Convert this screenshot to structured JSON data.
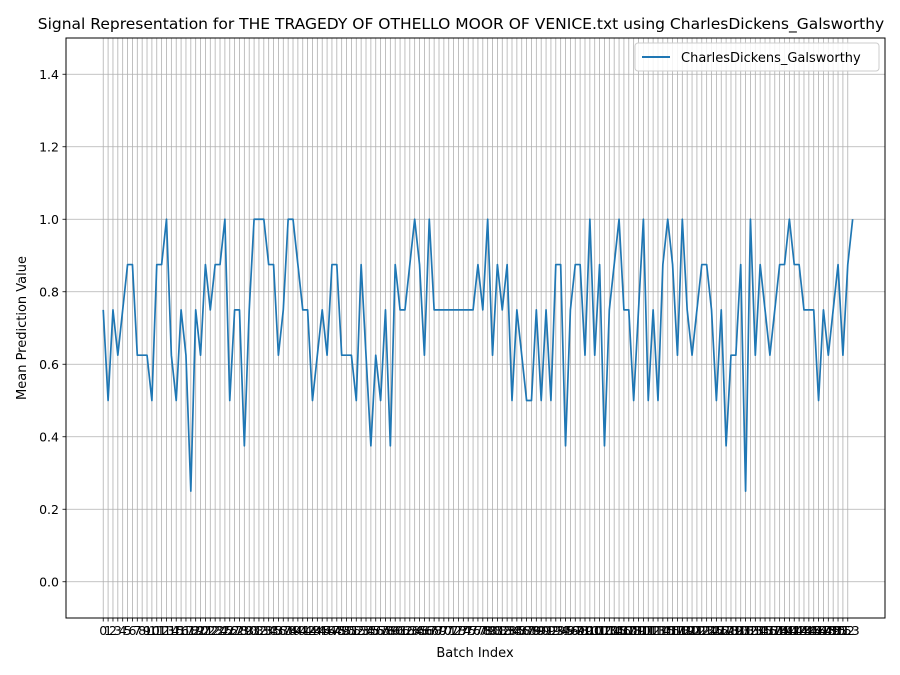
{
  "chart_data": {
    "type": "line",
    "title": "Signal Representation for THE TRAGEDY OF OTHELLO MOOR OF VENICE.txt using CharlesDickens_Galsworthy",
    "xlabel": "Batch Index",
    "ylabel": "Mean Prediction Value",
    "xlim": [
      -7.65,
      160.65
    ],
    "ylim": [
      -0.1,
      1.5
    ],
    "yticks": [
      0.0,
      0.2,
      0.4,
      0.6,
      0.8,
      1.0,
      1.2,
      1.4
    ],
    "ytick_labels": [
      "0.0",
      "0.2",
      "0.4",
      "0.6",
      "0.8",
      "1.0",
      "1.2",
      "1.4"
    ],
    "xticks_start": 0,
    "xticks_end": 153,
    "grid": true,
    "legend_position": "upper right",
    "series": [
      {
        "name": "CharlesDickens_Galsworthy",
        "color": "#1f77b4",
        "x_start": 0,
        "values": [
          0.75,
          0.5,
          0.75,
          0.625,
          0.75,
          0.875,
          0.875,
          0.625,
          0.625,
          0.625,
          0.5,
          0.875,
          0.875,
          1.0,
          0.625,
          0.5,
          0.75,
          0.625,
          0.25,
          0.75,
          0.625,
          0.875,
          0.75,
          0.875,
          0.875,
          1.0,
          0.5,
          0.75,
          0.75,
          0.375,
          0.75,
          1.0,
          1.0,
          1.0,
          0.875,
          0.875,
          0.625,
          0.75,
          1.0,
          1.0,
          0.875,
          0.75,
          0.75,
          0.5,
          0.625,
          0.75,
          0.625,
          0.875,
          0.875,
          0.625,
          0.625,
          0.625,
          0.5,
          0.875,
          0.625,
          0.375,
          0.625,
          0.5,
          0.75,
          0.375,
          0.875,
          0.75,
          0.75,
          0.875,
          1.0,
          0.875,
          0.625,
          1.0,
          0.75,
          0.75,
          0.75,
          0.75,
          0.75,
          0.75,
          0.75,
          0.75,
          0.75,
          0.875,
          0.75,
          1.0,
          0.625,
          0.875,
          0.75,
          0.875,
          0.5,
          0.75,
          0.625,
          0.5,
          0.5,
          0.75,
          0.5,
          0.75,
          0.5,
          0.875,
          0.875,
          0.375,
          0.75,
          0.875,
          0.875,
          0.625,
          1.0,
          0.625,
          0.875,
          0.375,
          0.75,
          0.875,
          1.0,
          0.75,
          0.75,
          0.5,
          0.75,
          1.0,
          0.5,
          0.75,
          0.5,
          0.875,
          1.0,
          0.875,
          0.625,
          1.0,
          0.75,
          0.625,
          0.75,
          0.875,
          0.875,
          0.75,
          0.5,
          0.75,
          0.375,
          0.625,
          0.625,
          0.875,
          0.25,
          1.0,
          0.625,
          0.875,
          0.75,
          0.625,
          0.75,
          0.875,
          0.875,
          1.0,
          0.875,
          0.875,
          0.75,
          0.75,
          0.75,
          0.5,
          0.75,
          0.625,
          0.75,
          0.875,
          0.625,
          0.875,
          1.0
        ]
      }
    ]
  }
}
